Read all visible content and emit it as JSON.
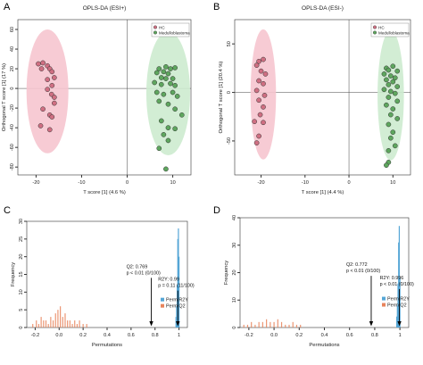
{
  "figure": {
    "colors": {
      "hc_fill": "#cf6f82",
      "hc_ellipse": "#f6c5cf",
      "mb_fill": "#5ea65e",
      "mb_ellipse": "#cdebcf",
      "r2y": "#55a6d6",
      "q2": "#e8845c",
      "axis": "#333333",
      "arrow": "#000000"
    }
  },
  "chart_data": [
    {
      "type": "scatter",
      "panel_label": "A",
      "title": "OPLS-DA (ESI+)",
      "xlabel": "T score [1] (4.6 %)",
      "ylabel": "Orthogonal T score [1] (17 %)",
      "xlim": [
        -24,
        14
      ],
      "ylim": [
        -88,
        70
      ],
      "xticks": [
        -20,
        -10,
        0,
        10
      ],
      "yticks": [
        -80,
        -60,
        -40,
        -20,
        0,
        20,
        40,
        60
      ],
      "legend": [
        "HC",
        "Medulloblastoma"
      ],
      "legend_position": "top-right",
      "ellipses": [
        {
          "group": "HC",
          "cx": -17.5,
          "cy": -3,
          "rx": 4.6,
          "ry": 63
        },
        {
          "group": "Medulloblastoma",
          "cx": 9,
          "cy": -5,
          "rx": 4.8,
          "ry": 63
        }
      ],
      "series": [
        {
          "name": "HC",
          "points": [
            [
              -19.5,
              25
            ],
            [
              -18.5,
              26
            ],
            [
              -17.5,
              23
            ],
            [
              -18.8,
              20
            ],
            [
              -17,
              20
            ],
            [
              -16.5,
              17
            ],
            [
              -16,
              11
            ],
            [
              -17.5,
              9
            ],
            [
              -16.5,
              3
            ],
            [
              -17.5,
              -1
            ],
            [
              -16.6,
              -6
            ],
            [
              -16,
              -9
            ],
            [
              -16,
              -15
            ],
            [
              -18.5,
              -21
            ],
            [
              -17,
              -27
            ],
            [
              -16.5,
              -29
            ],
            [
              -19,
              -38
            ],
            [
              -17,
              -42
            ]
          ]
        },
        {
          "name": "Medulloblastoma",
          "points": [
            [
              7,
              20
            ],
            [
              8.5,
              22
            ],
            [
              9.5,
              20
            ],
            [
              10.5,
              21
            ],
            [
              6.5,
              16
            ],
            [
              8,
              17
            ],
            [
              9,
              15
            ],
            [
              7.5,
              11
            ],
            [
              8.5,
              10
            ],
            [
              10,
              10
            ],
            [
              6,
              6
            ],
            [
              7.5,
              4
            ],
            [
              9.5,
              5
            ],
            [
              10.5,
              3
            ],
            [
              6.5,
              -4
            ],
            [
              8,
              -6
            ],
            [
              10,
              -4
            ],
            [
              11,
              -8
            ],
            [
              7,
              -13
            ],
            [
              9,
              -16
            ],
            [
              10.5,
              -21
            ],
            [
              12,
              -27
            ],
            [
              7.5,
              -33
            ],
            [
              9,
              -40
            ],
            [
              10.5,
              -41
            ],
            [
              8,
              -47
            ],
            [
              9,
              -53
            ],
            [
              7,
              -61
            ],
            [
              8.5,
              -82
            ]
          ]
        }
      ]
    },
    {
      "type": "scatter",
      "panel_label": "B",
      "title": "OPLS-DA (ESI-)",
      "xlabel": "T score [1] (4.4 %)",
      "ylabel": "Orthogonal T score [1] (20.4 %)",
      "xlim": [
        -26,
        14
      ],
      "ylim": [
        -85,
        75
      ],
      "xticks": [
        -20,
        -10,
        0,
        10
      ],
      "yticks": [
        -50,
        0,
        50
      ],
      "legend": [
        "HC",
        "Medulloblastoma"
      ],
      "legend_position": "top-right",
      "ellipses": [
        {
          "group": "HC",
          "cx": -19.5,
          "cy": -2,
          "rx": 2.9,
          "ry": 67
        },
        {
          "group": "Medulloblastoma",
          "cx": 9.5,
          "cy": -3,
          "rx": 3.0,
          "ry": 67
        }
      ],
      "series": [
        {
          "name": "HC",
          "points": [
            [
              -20.5,
              32
            ],
            [
              -19.5,
              34
            ],
            [
              -21,
              28
            ],
            [
              -20,
              22
            ],
            [
              -19,
              19
            ],
            [
              -20.5,
              12
            ],
            [
              -19.5,
              9
            ],
            [
              -21,
              2
            ],
            [
              -19.2,
              -3
            ],
            [
              -20.5,
              -8
            ],
            [
              -19.5,
              -15
            ],
            [
              -20.2,
              -23
            ],
            [
              -21.5,
              -30
            ],
            [
              -19.5,
              -31
            ],
            [
              -20.5,
              -45
            ],
            [
              -21,
              -52
            ]
          ]
        },
        {
          "name": "Medulloblastoma",
          "points": [
            [
              8.5,
              25
            ],
            [
              10,
              27
            ],
            [
              9,
              23
            ],
            [
              11,
              22
            ],
            [
              8,
              19
            ],
            [
              9.5,
              17
            ],
            [
              10.5,
              15
            ],
            [
              8.5,
              13
            ],
            [
              10,
              11
            ],
            [
              9,
              8
            ],
            [
              11,
              6
            ],
            [
              8,
              3
            ],
            [
              9.5,
              1
            ],
            [
              10.5,
              -1
            ],
            [
              9,
              -5
            ],
            [
              11,
              -9
            ],
            [
              8.5,
              -13
            ],
            [
              10,
              -17
            ],
            [
              9.5,
              -23
            ],
            [
              11,
              -27
            ],
            [
              9,
              -33
            ],
            [
              10,
              -41
            ],
            [
              9.5,
              -47
            ],
            [
              10.5,
              -55
            ],
            [
              9,
              -60
            ],
            [
              9,
              -72
            ],
            [
              8.5,
              -75
            ]
          ]
        }
      ]
    },
    {
      "type": "histogram",
      "panel_label": "C",
      "xlabel": "Permutations",
      "ylabel": "Frequency",
      "xlim": [
        -0.27,
        1.07
      ],
      "ylim": [
        0,
        30
      ],
      "xticks": [
        -0.2,
        0.0,
        0.2,
        0.4,
        0.6,
        0.8,
        1.0
      ],
      "yticks": [
        0,
        5,
        10,
        15,
        20,
        25,
        30
      ],
      "legend": [
        "Perm R2Y",
        "Perm Q2"
      ],
      "legend_position": "bottom-right",
      "annotations": [
        {
          "lines": [
            "Q2: 0.769",
            "p < 0.01 (0/100)"
          ],
          "x": 0.769
        },
        {
          "lines": [
            "R2Y: 0.99",
            "p = 0.11 (11/100)"
          ],
          "x": 0.99
        }
      ],
      "series": [
        {
          "name": "Perm R2Y",
          "x": [
            0.975,
            0.98,
            0.985,
            0.99,
            0.995,
            1.0
          ],
          "values": [
            3,
            6,
            12,
            25,
            28,
            20
          ]
        },
        {
          "name": "Perm Q2",
          "x": [
            -0.22,
            -0.19,
            -0.17,
            -0.15,
            -0.13,
            -0.11,
            -0.09,
            -0.07,
            -0.05,
            -0.03,
            -0.01,
            0.01,
            0.03,
            0.05,
            0.07,
            0.09,
            0.11,
            0.13,
            0.15,
            0.17,
            0.2,
            0.23
          ],
          "values": [
            1,
            2,
            1,
            3,
            2,
            2,
            1,
            3,
            2,
            4,
            5,
            6,
            3,
            4,
            2,
            2,
            1,
            2,
            1,
            2,
            1,
            1
          ]
        }
      ]
    },
    {
      "type": "histogram",
      "panel_label": "D",
      "xlabel": "Permutations",
      "ylabel": "Frequency",
      "xlim": [
        -0.27,
        1.07
      ],
      "ylim": [
        0,
        40
      ],
      "xticks": [
        -0.2,
        0.0,
        0.2,
        0.4,
        0.6,
        0.8,
        1.0
      ],
      "yticks": [
        0,
        10,
        20,
        30,
        40
      ],
      "legend": [
        "Perm R2Y",
        "Perm Q2"
      ],
      "legend_position": "bottom-right",
      "annotations": [
        {
          "lines": [
            "Q2: 0.772",
            "p < 0.01 (0/100)"
          ],
          "x": 0.772
        },
        {
          "lines": [
            "R2Y: 0.996",
            "p < 0.01 (0/100)"
          ],
          "x": 0.996
        }
      ],
      "series": [
        {
          "name": "Perm R2Y",
          "x": [
            0.975,
            0.98,
            0.985,
            0.99,
            0.995,
            1.0
          ],
          "values": [
            4,
            8,
            16,
            31,
            37,
            18
          ]
        },
        {
          "name": "Perm Q2",
          "x": [
            -0.24,
            -0.21,
            -0.18,
            -0.15,
            -0.12,
            -0.09,
            -0.06,
            -0.03,
            0.0,
            0.03,
            0.06,
            0.09,
            0.12,
            0.15,
            0.18,
            0.21
          ],
          "values": [
            1,
            1,
            2,
            1,
            2,
            2,
            3,
            2,
            2,
            3,
            2,
            1,
            1,
            2,
            1,
            1
          ]
        }
      ]
    }
  ]
}
